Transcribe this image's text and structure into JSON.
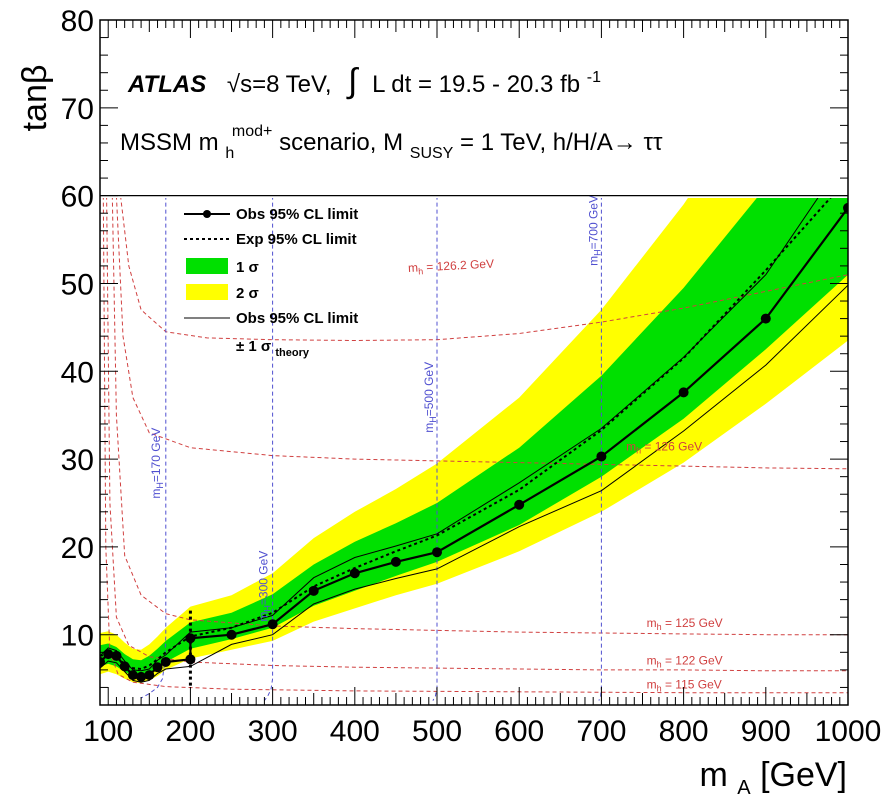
{
  "chart_data": {
    "type": "line",
    "xlabel": "m",
    "xlabel_sub": "A",
    "xlabel_unit": " [GeV]",
    "ylabel": "tanβ",
    "xlim": [
      90,
      1000
    ],
    "ylim": [
      2,
      80
    ],
    "x_ticks": [
      100,
      200,
      300,
      400,
      500,
      600,
      700,
      800,
      900,
      1000
    ],
    "y_ticks": [
      10,
      20,
      30,
      40,
      50,
      60,
      70,
      80
    ],
    "header": {
      "experiment": "ATLAS",
      "sqrt": "√s=8 TeV,",
      "lumi": "L dt = 19.5 - 20.3 fb",
      "lumi_sup": "-1",
      "line2_a": "MSSM m",
      "line2_sub": "h",
      "line2_sup": "mod+",
      "line2_b": " scenario, M",
      "line2_sub2": "SUSY",
      "line2_c": " = 1 TeV, h/H/A→ ττ"
    },
    "legend": [
      {
        "label": "Obs 95% CL limit"
      },
      {
        "label": "Exp 95% CL limit"
      },
      {
        "label": "1 σ"
      },
      {
        "label": "2 σ"
      },
      {
        "label": "Obs 95% CL limit"
      },
      {
        "label": "± 1 σ",
        "sub": "theory"
      }
    ],
    "colors": {
      "band_1sigma": "#00e000",
      "band_2sigma": "#ffff00",
      "mh_contour": "#d04040",
      "mH_contour": "#5050d0",
      "observed": "#000000"
    },
    "observed": {
      "x": [
        90,
        100,
        110,
        120,
        130,
        140,
        150,
        160,
        170,
        200,
        200,
        250,
        300,
        350,
        400,
        450,
        500,
        600,
        700,
        800,
        900,
        1000
      ],
      "y": [
        6.9,
        7.8,
        7.6,
        6.4,
        5.4,
        5.2,
        5.4,
        6.3,
        6.9,
        7.2,
        9.6,
        10.0,
        11.2,
        15.0,
        17.0,
        18.3,
        19.4,
        24.8,
        30.3,
        37.6,
        46.0,
        58.6
      ]
    },
    "expected": {
      "x": [
        90,
        100,
        110,
        120,
        130,
        140,
        150,
        160,
        170,
        200,
        250,
        300,
        350,
        400,
        450,
        500,
        600,
        700,
        800,
        900,
        1000
      ],
      "y": [
        7.6,
        7.8,
        7.4,
        6.7,
        6.2,
        6.1,
        6.5,
        7.2,
        8.0,
        9.8,
        10.8,
        12.5,
        15.5,
        17.6,
        19.5,
        21.3,
        26.5,
        33.3,
        41.5,
        51.5,
        62.0
      ]
    },
    "band_1sigma": {
      "x": [
        90,
        100,
        110,
        120,
        130,
        140,
        150,
        160,
        170,
        200,
        250,
        300,
        350,
        400,
        450,
        500,
        600,
        700,
        800,
        900,
        1000
      ],
      "low": [
        6.4,
        6.7,
        6.4,
        5.8,
        5.3,
        5.2,
        5.5,
        6.1,
        6.9,
        8.4,
        9.5,
        10.8,
        13.3,
        15.0,
        16.7,
        18.3,
        22.5,
        28.0,
        34.6,
        42.5,
        51.0
      ],
      "high": [
        8.8,
        9.0,
        8.6,
        7.8,
        7.2,
        7.1,
        7.6,
        8.4,
        9.3,
        11.4,
        12.5,
        14.6,
        18.0,
        20.6,
        22.7,
        25.0,
        31.3,
        39.5,
        49.5,
        61.0,
        74.0
      ]
    },
    "band_2sigma": {
      "x": [
        90,
        100,
        110,
        120,
        130,
        140,
        150,
        160,
        170,
        200,
        250,
        300,
        350,
        400,
        450,
        500,
        600,
        700,
        800,
        900,
        1000
      ],
      "low": [
        5.5,
        5.8,
        5.5,
        5.0,
        4.6,
        4.5,
        4.8,
        5.3,
        6.0,
        7.3,
        8.3,
        9.3,
        11.5,
        13.0,
        14.5,
        15.8,
        19.5,
        24.0,
        29.6,
        36.3,
        43.5
      ],
      "high": [
        10.2,
        10.4,
        10.0,
        9.1,
        8.4,
        8.3,
        8.9,
        9.8,
        10.8,
        13.2,
        14.5,
        17.0,
        21.0,
        24.0,
        26.6,
        29.5,
        37.0,
        47.0,
        59.0,
        73.0,
        88.0
      ]
    },
    "theory_up": {
      "x": [
        90,
        100,
        110,
        120,
        130,
        140,
        150,
        160,
        170,
        200,
        250,
        300,
        350,
        400,
        450,
        500,
        600,
        700,
        800,
        900,
        1000
      ],
      "y": [
        7.6,
        8.5,
        8.2,
        7.0,
        6.0,
        5.9,
        6.1,
        7.1,
        7.7,
        10.3,
        10.8,
        12.2,
        16.5,
        18.8,
        20.1,
        21.5,
        27.3,
        33.5,
        41.6,
        51.0,
        64.8
      ]
    },
    "theory_down": {
      "x": [
        90,
        100,
        110,
        120,
        130,
        140,
        150,
        160,
        170,
        200,
        250,
        300,
        350,
        400,
        450,
        500,
        600,
        700,
        800,
        900,
        1000
      ],
      "y": [
        6.2,
        7.0,
        6.8,
        5.8,
        4.8,
        4.6,
        4.8,
        5.6,
        6.1,
        6.4,
        8.9,
        10.0,
        13.5,
        15.2,
        16.4,
        17.5,
        22.3,
        26.4,
        33.2,
        40.7,
        49.8
      ]
    },
    "mh_contours": [
      {
        "label": "m",
        "sub": "h",
        "value": " = 126.2 GeV",
        "x": [
          115,
          125,
          140,
          170,
          220,
          300,
          400,
          500,
          600,
          700,
          800,
          900,
          1000
        ],
        "y": [
          60,
          52,
          47,
          44.5,
          43.8,
          43.6,
          43.5,
          43.6,
          44.3,
          45.6,
          47.2,
          49.1,
          51.0
        ]
      },
      {
        "label": "m",
        "sub": "h",
        "value": " = 126 GeV",
        "x": [
          110,
          118,
          130,
          150,
          200,
          300,
          400,
          500,
          600,
          700,
          800,
          900,
          1000
        ],
        "y": [
          60,
          44,
          37,
          33,
          31.3,
          30.4,
          30.0,
          29.8,
          29.6,
          29.4,
          29.2,
          29.0,
          28.9
        ]
      },
      {
        "label": "m",
        "sub": "h",
        "value": " = 125 GeV",
        "x": [
          105,
          110,
          120,
          140,
          170,
          200,
          300,
          400,
          500,
          600,
          700,
          800,
          900,
          1000
        ],
        "y": [
          60,
          35,
          19,
          14.5,
          12.4,
          11.7,
          11.0,
          10.7,
          10.5,
          10.3,
          10.2,
          10.1,
          10.0,
          10.0
        ]
      },
      {
        "label": "m",
        "sub": "h",
        "value": " = 122 GeV",
        "x": [
          98,
          102,
          110,
          125,
          150,
          200,
          300,
          400,
          500,
          600,
          700,
          800,
          900,
          1000
        ],
        "y": [
          60,
          25,
          12,
          8.8,
          7.5,
          6.9,
          6.5,
          6.3,
          6.2,
          6.1,
          6.0,
          6.0,
          5.9,
          5.9
        ]
      },
      {
        "label": "m",
        "sub": "h",
        "value": " = 115 GeV",
        "x": [
          94,
          97,
          102,
          112,
          130,
          170,
          250,
          400,
          600,
          800,
          1000
        ],
        "y": [
          60,
          20,
          8,
          5.5,
          4.6,
          4.1,
          3.8,
          3.6,
          3.5,
          3.4,
          3.4
        ]
      }
    ],
    "mH_contours": [
      {
        "label": "m",
        "sub": "H",
        "value": "=170 GeV",
        "x": [
          170,
          170,
          169,
          166,
          160,
          150,
          140
        ],
        "y": [
          60,
          10,
          7,
          5,
          4,
          3.3,
          2.8
        ]
      },
      {
        "label": "m",
        "sub": "H",
        "value": "=300 GeV",
        "x": [
          300,
          300,
          298,
          294,
          290
        ],
        "y": [
          60,
          5,
          3.8,
          3,
          2.5
        ]
      },
      {
        "label": "m",
        "sub": "H",
        "value": "=500 GeV",
        "x": [
          500,
          500,
          498,
          495
        ],
        "y": [
          60,
          4,
          3,
          2.5
        ]
      },
      {
        "label": "m",
        "sub": "H",
        "value": "=700 GeV",
        "x": [
          700,
          700,
          699,
          697
        ],
        "y": [
          60,
          4,
          3,
          2.5
        ]
      }
    ]
  }
}
